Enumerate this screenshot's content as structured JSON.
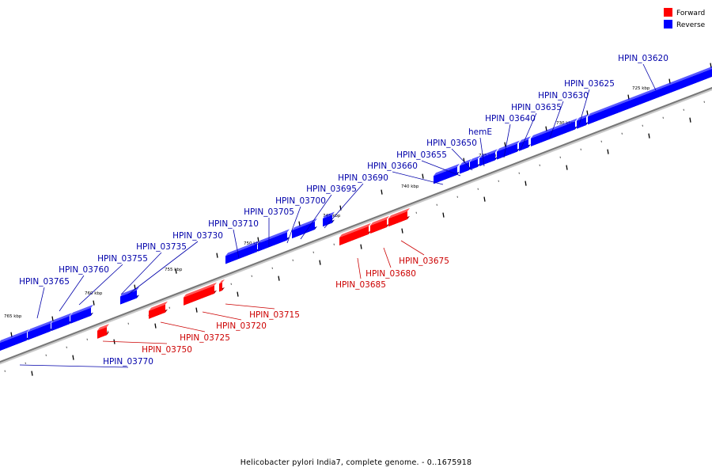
{
  "caption": "Helicobacter pylori India7, complete genome. - 0..1675918",
  "legend": {
    "forward": {
      "label": "Forward",
      "color": "#ff0000"
    },
    "reverse": {
      "label": "Reverse",
      "color": "#0000ff"
    }
  },
  "colors": {
    "forward": "#ff0000",
    "reverse": "#0000ff",
    "label_forward": "#cc0000",
    "label_reverse": "#0000aa",
    "backbone": "#777777"
  },
  "scale_labels": [
    "765 kbp",
    "760 kbp",
    "755 kbp",
    "750 kbp",
    "745 kbp",
    "740 kbp",
    "735 kbp",
    "730 kbp",
    "725 kbp"
  ],
  "reverse_genes": [
    "HPIN_03620",
    "HPIN_03625",
    "HPIN_03630",
    "HPIN_03635",
    "HPIN_03640",
    "hemE",
    "HPIN_03650",
    "HPIN_03655",
    "HPIN_03660",
    "HPIN_03690",
    "HPIN_03695",
    "HPIN_03700",
    "HPIN_03705",
    "HPIN_03710",
    "HPIN_03730",
    "HPIN_03735",
    "HPIN_03755",
    "HPIN_03760",
    "HPIN_03765",
    "HPIN_03770"
  ],
  "forward_genes": [
    "HPIN_03675",
    "HPIN_03680",
    "HPIN_03685",
    "HPIN_03715",
    "HPIN_03720",
    "HPIN_03725",
    "HPIN_03750"
  ]
}
